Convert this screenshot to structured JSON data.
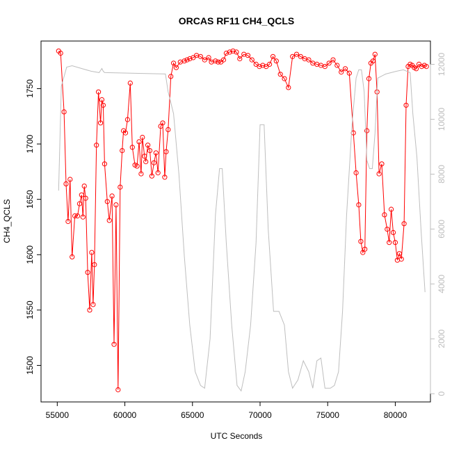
{
  "chart_data": {
    "type": "line",
    "title": "ORCAS RF11 CH4_QCLS",
    "xlabel": "UTC Seconds",
    "ylabel": "CH4_QCLS",
    "xlim": [
      53800,
      82600
    ],
    "ylim": [
      1467,
      1793
    ],
    "y2lim": [
      -300,
      12850
    ],
    "x_ticks": [
      55000,
      60000,
      65000,
      70000,
      75000,
      80000
    ],
    "y_ticks": [
      1500,
      1550,
      1600,
      1650,
      1700,
      1750
    ],
    "y2_ticks": [
      0,
      2000,
      4000,
      6000,
      8000,
      10000,
      12000
    ],
    "colors": {
      "ch4": "#ff0000",
      "altitude": "#bebebe"
    },
    "series": [
      {
        "key": "ch4",
        "style": "line+open-circles",
        "x": [
          55100,
          55250,
          55500,
          55650,
          55800,
          55950,
          56100,
          56300,
          56500,
          56650,
          56800,
          56900,
          57000,
          57100,
          57250,
          57400,
          57550,
          57650,
          57750,
          57900,
          58050,
          58200,
          58300,
          58400,
          58500,
          58700,
          58850,
          59050,
          59200,
          59350,
          59500,
          59650,
          59800,
          59900,
          60050,
          60200,
          60400,
          60550,
          60750,
          60900,
          61050,
          61200,
          61300,
          61450,
          61550,
          61700,
          61850,
          62000,
          62150,
          62300,
          62450,
          62650,
          62800,
          62950,
          63050,
          63200,
          63400,
          63600,
          63800,
          64100,
          64400,
          64600,
          64800,
          65050,
          65300,
          65600,
          65900,
          66200,
          66400,
          66700,
          66900,
          67100,
          67300,
          67500,
          67750,
          68000,
          68250,
          68500,
          68800,
          69100,
          69400,
          69700,
          69950,
          70200,
          70450,
          70700,
          70950,
          71200,
          71500,
          71800,
          72100,
          72400,
          72700,
          73000,
          73300,
          73600,
          73900,
          74200,
          74500,
          74800,
          75100,
          75400,
          75700,
          76000,
          76300,
          76600,
          76900,
          77100,
          77300,
          77450,
          77600,
          77750,
          77900,
          78050,
          78200,
          78350,
          78500,
          78650,
          78800,
          79000,
          79200,
          79400,
          79550,
          79700,
          79850,
          80000,
          80150,
          80300,
          80450,
          80650,
          80800,
          80950,
          81100,
          81250,
          81400,
          81550,
          81750,
          81950,
          82150,
          82300
        ],
        "y": [
          1784,
          1782,
          1729,
          1664,
          1630,
          1668,
          1598,
          1635,
          1635,
          1646,
          1654,
          1634,
          1662,
          1651,
          1584,
          1550,
          1602,
          1555,
          1591,
          1699,
          1747,
          1719,
          1740,
          1735,
          1682,
          1648,
          1631,
          1653,
          1519,
          1645,
          1478,
          1661,
          1694,
          1712,
          1710,
          1722,
          1755,
          1697,
          1681,
          1680,
          1702,
          1673,
          1706,
          1689,
          1684,
          1699,
          1694,
          1671,
          1683,
          1692,
          1674,
          1716,
          1719,
          1670,
          1693,
          1713,
          1761,
          1773,
          1769,
          1774,
          1775,
          1776,
          1777,
          1778,
          1780,
          1779,
          1776,
          1778,
          1774,
          1775,
          1774,
          1774,
          1776,
          1782,
          1783,
          1784,
          1783,
          1777,
          1781,
          1780,
          1776,
          1772,
          1770,
          1771,
          1770,
          1772,
          1779,
          1775,
          1763,
          1759,
          1751,
          1779,
          1781,
          1779,
          1777,
          1776,
          1773,
          1772,
          1771,
          1770,
          1773,
          1776,
          1771,
          1765,
          1768,
          1764,
          1710,
          1674,
          1645,
          1612,
          1602,
          1605,
          1712,
          1759,
          1773,
          1775,
          1781,
          1747,
          1673,
          1682,
          1636,
          1623,
          1611,
          1641,
          1620,
          1611,
          1595,
          1601,
          1596,
          1628,
          1735,
          1770,
          1772,
          1771,
          1769,
          1768,
          1772,
          1770,
          1771,
          1770
        ]
      },
      {
        "key": "altitude",
        "style": "line",
        "x": [
          55100,
          55300,
          55700,
          56100,
          56800,
          57500,
          58100,
          58300,
          58400,
          58500,
          63000,
          63200,
          63600,
          64000,
          64400,
          64800,
          65200,
          65600,
          65900,
          66300,
          66700,
          67000,
          67200,
          67500,
          67900,
          68300,
          68600,
          68900,
          69300,
          69700,
          70000,
          70300,
          70600,
          71000,
          71400,
          71800,
          72100,
          72400,
          72800,
          73200,
          73600,
          73900,
          74200,
          74500,
          74800,
          75200,
          75500,
          75800,
          76100,
          76400,
          76800,
          77100,
          77300,
          77500,
          77700,
          77900,
          78100,
          78300,
          78500,
          78700,
          78900,
          79100,
          79300,
          79700,
          80100,
          80600,
          81100,
          81300,
          81600,
          81900,
          82200
        ],
        "y": [
          7400,
          11200,
          11900,
          11950,
          11850,
          11750,
          11700,
          11850,
          11750,
          11700,
          11650,
          11000,
          10200,
          8000,
          5000,
          2500,
          800,
          300,
          200,
          2000,
          6500,
          8200,
          8200,
          5500,
          2500,
          300,
          100,
          800,
          2500,
          5500,
          9800,
          9800,
          6000,
          3000,
          3000,
          2500,
          800,
          200,
          500,
          1200,
          800,
          200,
          1200,
          1300,
          200,
          200,
          300,
          800,
          3000,
          6500,
          9800,
          11500,
          11800,
          11800,
          11000,
          8500,
          8200,
          8200,
          9500,
          11500,
          11550,
          11600,
          11650,
          11700,
          11750,
          11800,
          11700,
          10200,
          8600,
          6000,
          3700
        ]
      }
    ]
  }
}
